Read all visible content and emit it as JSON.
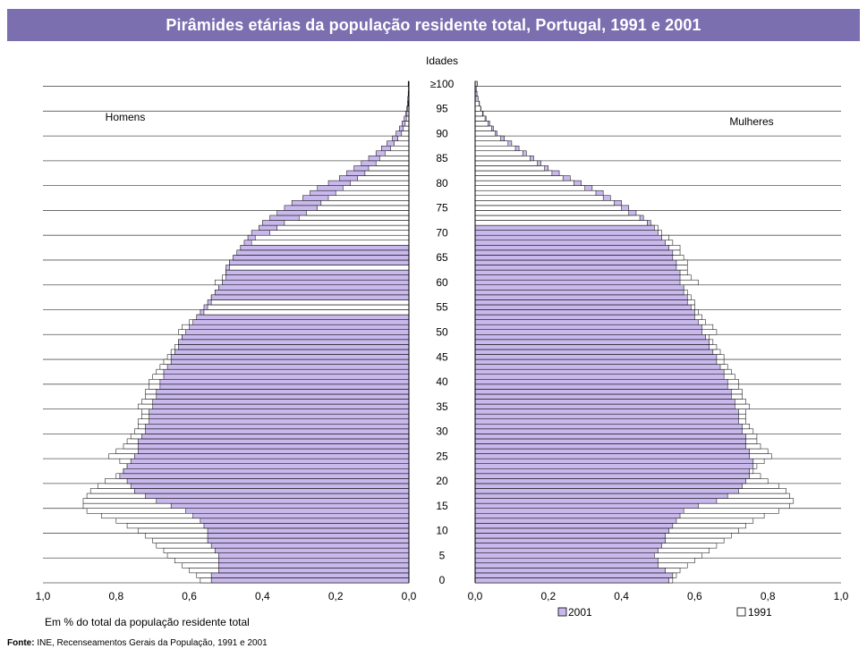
{
  "chart_data": {
    "type": "bar",
    "title": "Pirâmides etárias da população residente total, Portugal, 1991 e 2001",
    "center_axis_title": "Idades",
    "left_panel_label": "Homens",
    "right_panel_label": "Mulheres",
    "age_tick_labels": [
      "0",
      "5",
      "10",
      "15",
      "20",
      "25",
      "30",
      "35",
      "40",
      "45",
      "50",
      "55",
      "60",
      "65",
      "70",
      "75",
      "80",
      "85",
      "90",
      "95",
      "≥100"
    ],
    "x_tick_labels_left": [
      "1,0",
      "0,8",
      "0,6",
      "0,4",
      "0,2",
      "0,0"
    ],
    "x_tick_labels_right": [
      "0,0",
      "0,2",
      "0,4",
      "0,6",
      "0,8",
      "1,0"
    ],
    "xlim": [
      0,
      1.0
    ],
    "xlabel": "Em % do total da população residente total",
    "legend": {
      "placement": "bottom",
      "entries": [
        "2001",
        "1991"
      ]
    },
    "series_colors": {
      "2001": "#c8b8ec",
      "1991": "#ffffff",
      "outline": "#000000"
    },
    "ages_start": 0,
    "ages_end": 100,
    "series": [
      {
        "name": "2001",
        "side": "Homens",
        "values": [
          0.54,
          0.54,
          0.52,
          0.52,
          0.52,
          0.52,
          0.53,
          0.54,
          0.55,
          0.55,
          0.55,
          0.56,
          0.57,
          0.59,
          0.61,
          0.65,
          0.69,
          0.72,
          0.75,
          0.76,
          0.77,
          0.79,
          0.78,
          0.77,
          0.76,
          0.75,
          0.74,
          0.74,
          0.74,
          0.73,
          0.72,
          0.72,
          0.71,
          0.71,
          0.71,
          0.7,
          0.7,
          0.69,
          0.69,
          0.68,
          0.68,
          0.67,
          0.67,
          0.66,
          0.65,
          0.65,
          0.64,
          0.63,
          0.63,
          0.62,
          0.61,
          0.6,
          0.59,
          0.58,
          0.57,
          0.56,
          0.55,
          0.54,
          0.53,
          0.52,
          0.51,
          0.5,
          0.5,
          0.5,
          0.49,
          0.48,
          0.47,
          0.46,
          0.45,
          0.44,
          0.43,
          0.41,
          0.4,
          0.38,
          0.36,
          0.34,
          0.32,
          0.29,
          0.27,
          0.25,
          0.22,
          0.19,
          0.17,
          0.15,
          0.13,
          0.11,
          0.09,
          0.075,
          0.06,
          0.045,
          0.035,
          0.026,
          0.019,
          0.013,
          0.009,
          0.006,
          0.004,
          0.003,
          0.002,
          0.001,
          0.002
        ]
      },
      {
        "name": "1991",
        "side": "Homens",
        "values": [
          0.57,
          0.58,
          0.6,
          0.62,
          0.64,
          0.66,
          0.67,
          0.69,
          0.7,
          0.72,
          0.74,
          0.77,
          0.8,
          0.84,
          0.88,
          0.89,
          0.89,
          0.88,
          0.87,
          0.85,
          0.83,
          0.8,
          0.78,
          0.77,
          0.79,
          0.82,
          0.8,
          0.78,
          0.77,
          0.76,
          0.75,
          0.74,
          0.74,
          0.73,
          0.73,
          0.74,
          0.73,
          0.72,
          0.72,
          0.71,
          0.71,
          0.7,
          0.69,
          0.68,
          0.67,
          0.66,
          0.65,
          0.64,
          0.63,
          0.62,
          0.63,
          0.62,
          0.6,
          0.58,
          0.56,
          0.55,
          0.54,
          0.54,
          0.53,
          0.52,
          0.53,
          0.51,
          0.5,
          0.49,
          0.49,
          0.48,
          0.47,
          0.46,
          0.43,
          0.42,
          0.38,
          0.36,
          0.34,
          0.3,
          0.28,
          0.25,
          0.24,
          0.22,
          0.2,
          0.18,
          0.16,
          0.14,
          0.12,
          0.11,
          0.09,
          0.08,
          0.065,
          0.05,
          0.04,
          0.03,
          0.02,
          0.015,
          0.01,
          0.007,
          0.005,
          0.003,
          0.002,
          0.001,
          0.001,
          0.001,
          0.001
        ]
      },
      {
        "name": "2001",
        "side": "Mulheres",
        "values": [
          0.53,
          0.54,
          0.52,
          0.5,
          0.5,
          0.49,
          0.5,
          0.51,
          0.52,
          0.52,
          0.53,
          0.54,
          0.55,
          0.56,
          0.57,
          0.61,
          0.66,
          0.69,
          0.72,
          0.73,
          0.74,
          0.75,
          0.75,
          0.76,
          0.76,
          0.75,
          0.75,
          0.74,
          0.74,
          0.74,
          0.73,
          0.73,
          0.72,
          0.72,
          0.72,
          0.71,
          0.71,
          0.7,
          0.7,
          0.69,
          0.69,
          0.68,
          0.68,
          0.67,
          0.66,
          0.66,
          0.65,
          0.64,
          0.64,
          0.63,
          0.62,
          0.62,
          0.61,
          0.6,
          0.6,
          0.59,
          0.58,
          0.58,
          0.57,
          0.57,
          0.56,
          0.56,
          0.56,
          0.55,
          0.55,
          0.54,
          0.54,
          0.53,
          0.52,
          0.51,
          0.5,
          0.49,
          0.48,
          0.46,
          0.44,
          0.42,
          0.4,
          0.37,
          0.35,
          0.32,
          0.29,
          0.26,
          0.23,
          0.2,
          0.18,
          0.16,
          0.14,
          0.12,
          0.1,
          0.08,
          0.06,
          0.05,
          0.04,
          0.03,
          0.022,
          0.016,
          0.012,
          0.008,
          0.005,
          0.003,
          0.006
        ]
      },
      {
        "name": "1991",
        "side": "Mulheres",
        "values": [
          0.54,
          0.55,
          0.56,
          0.58,
          0.6,
          0.62,
          0.64,
          0.66,
          0.68,
          0.7,
          0.72,
          0.74,
          0.76,
          0.79,
          0.83,
          0.86,
          0.87,
          0.86,
          0.85,
          0.83,
          0.8,
          0.78,
          0.76,
          0.77,
          0.79,
          0.81,
          0.8,
          0.78,
          0.77,
          0.77,
          0.76,
          0.75,
          0.74,
          0.74,
          0.74,
          0.75,
          0.74,
          0.73,
          0.73,
          0.72,
          0.72,
          0.71,
          0.7,
          0.69,
          0.68,
          0.68,
          0.67,
          0.66,
          0.65,
          0.64,
          0.66,
          0.65,
          0.63,
          0.62,
          0.61,
          0.6,
          0.6,
          0.59,
          0.58,
          0.57,
          0.61,
          0.59,
          0.58,
          0.58,
          0.58,
          0.57,
          0.56,
          0.56,
          0.54,
          0.53,
          0.51,
          0.5,
          0.47,
          0.45,
          0.42,
          0.4,
          0.38,
          0.35,
          0.33,
          0.3,
          0.27,
          0.24,
          0.21,
          0.19,
          0.17,
          0.15,
          0.13,
          0.11,
          0.09,
          0.07,
          0.055,
          0.045,
          0.035,
          0.027,
          0.02,
          0.015,
          0.011,
          0.008,
          0.005,
          0.003,
          0.005
        ]
      }
    ]
  },
  "footer": {
    "source_label": "Fonte:",
    "source_text": " INE, Recenseamentos Gerais da População, 1991 e 2001"
  }
}
